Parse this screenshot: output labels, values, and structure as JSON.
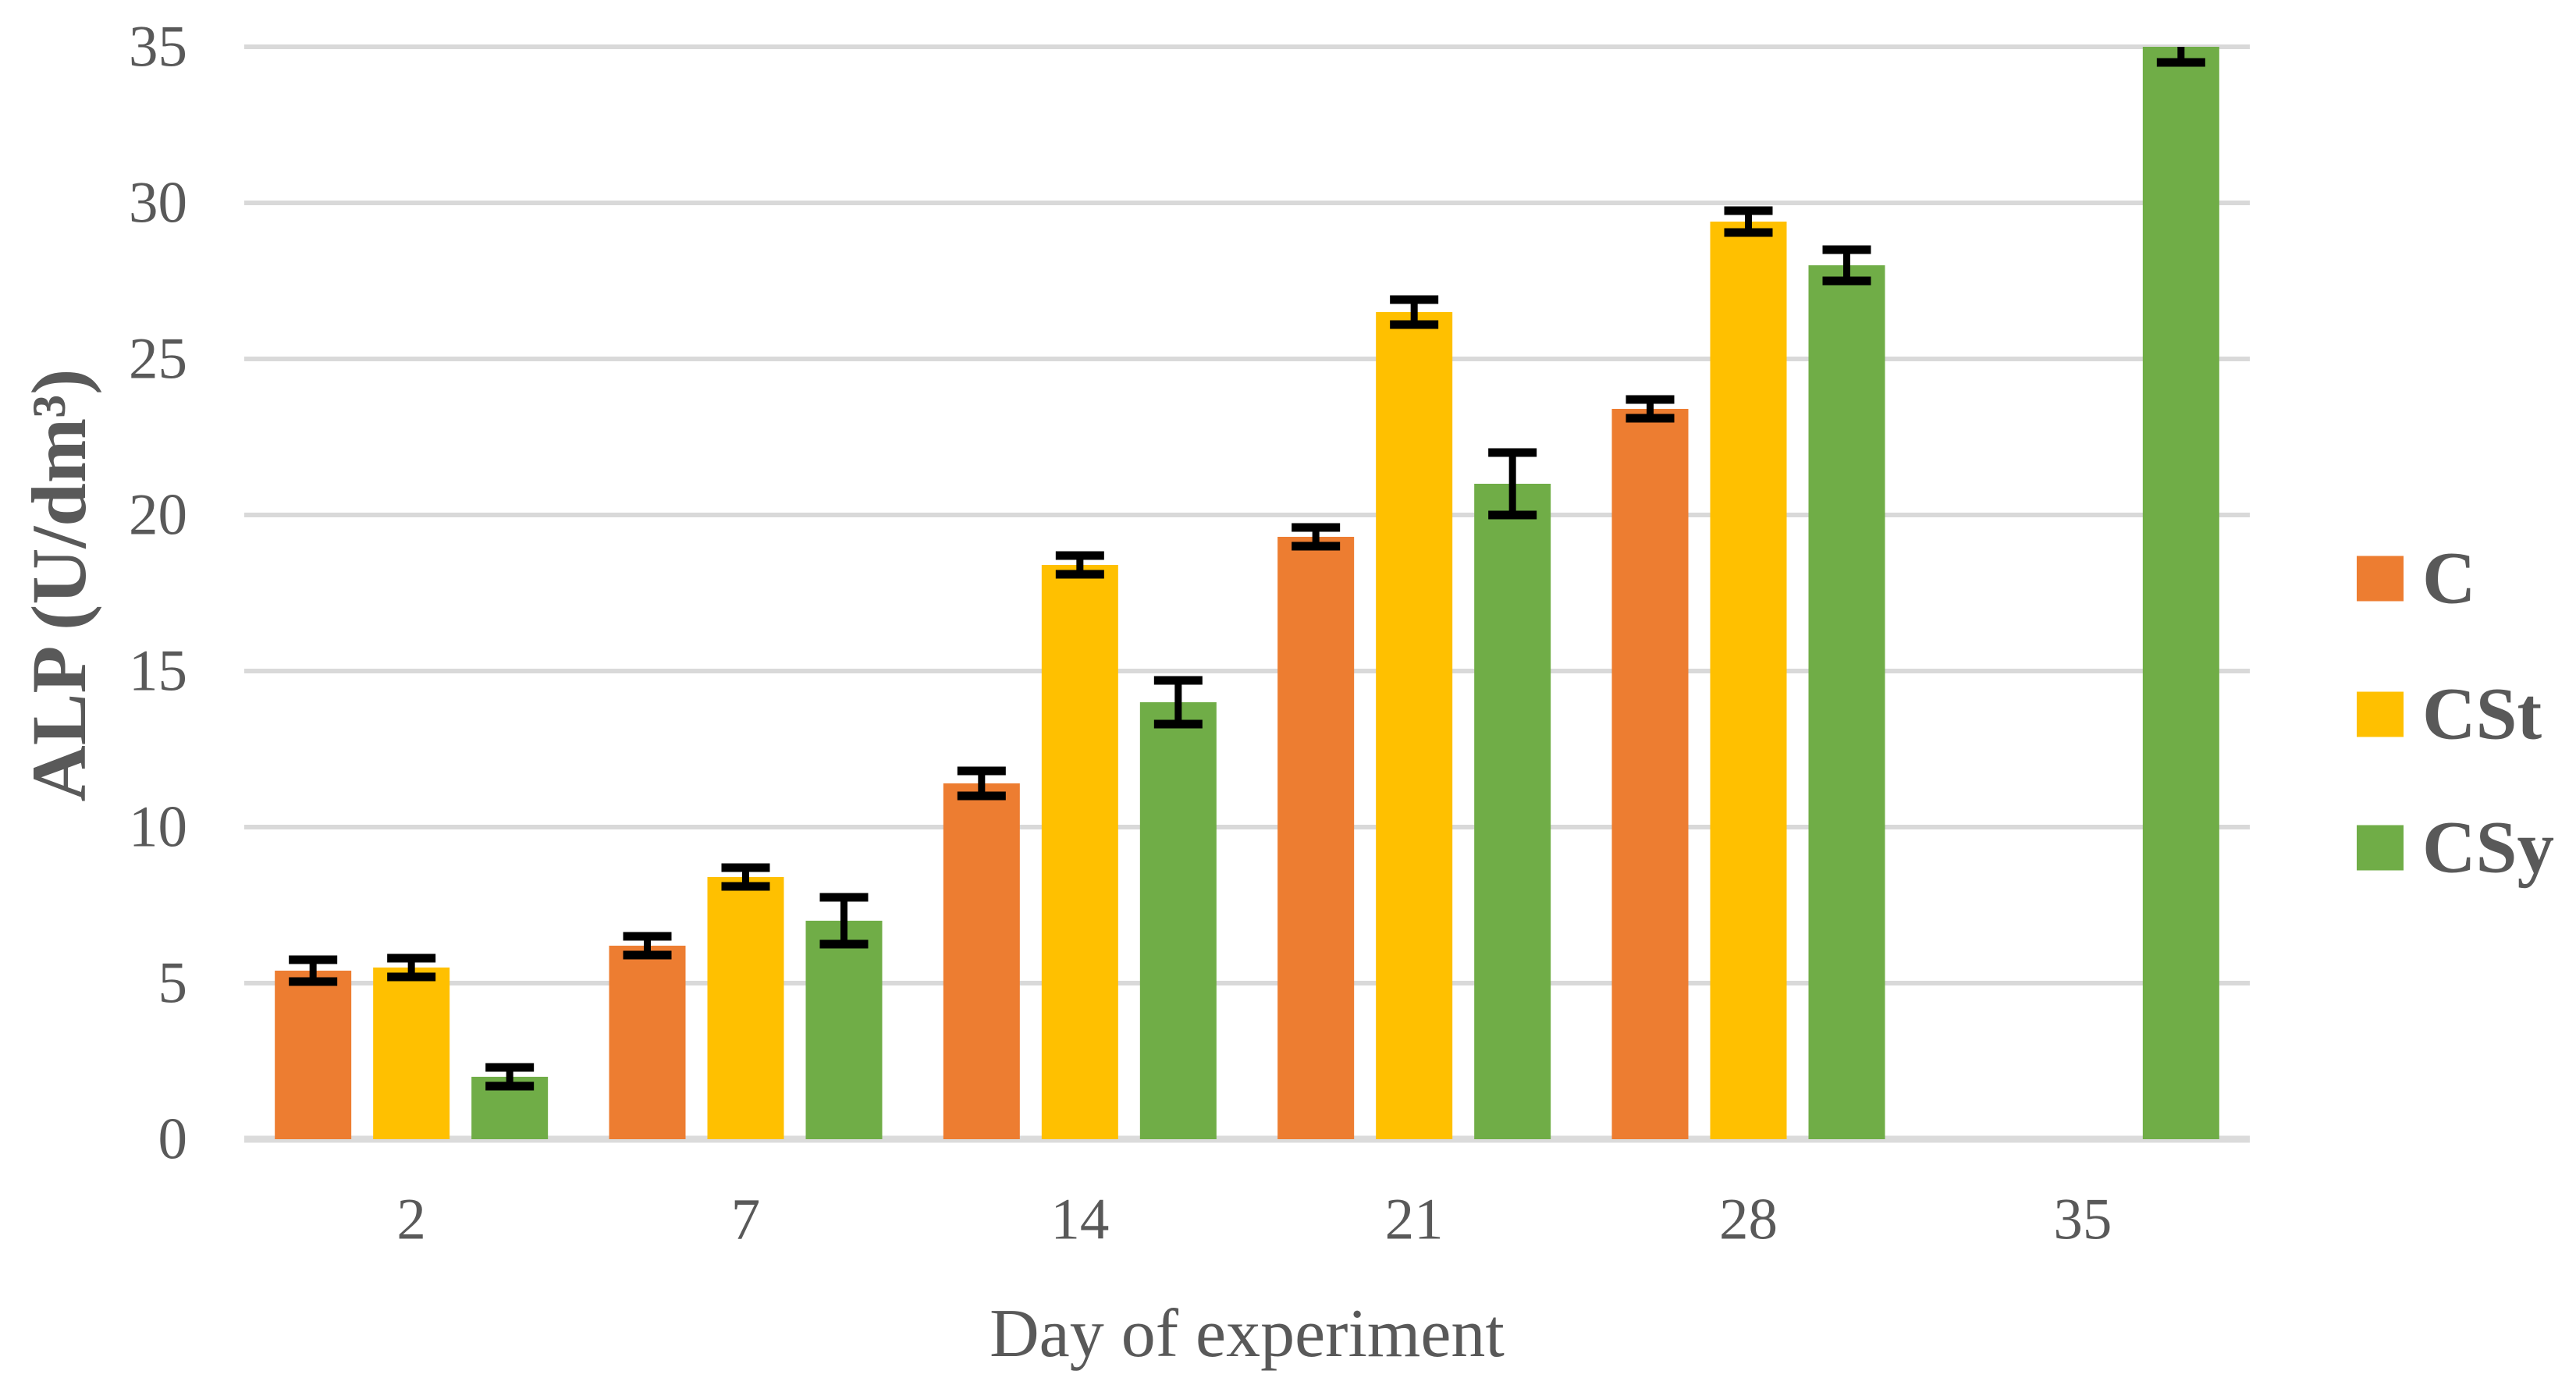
{
  "figure": {
    "background": "#FFFFFF",
    "text_color": "#595959",
    "grid_color": "#D9D9D9",
    "baseline_color": "#DBDBDB",
    "error_bar_color": "#000000"
  },
  "chart_data": {
    "type": "bar",
    "title": "",
    "xlabel": "Day of experiment",
    "ylabel": "ALP (U/dm³)",
    "categories": [
      "2",
      "7",
      "14",
      "21",
      "28",
      "35"
    ],
    "series": [
      {
        "name": "C",
        "color": "#ED7D31",
        "values": [
          5.4,
          6.2,
          11.4,
          19.3,
          23.4,
          null
        ],
        "errors": [
          0.35,
          0.3,
          0.4,
          0.3,
          0.3,
          null
        ]
      },
      {
        "name": "CSt",
        "color": "#FFC000",
        "values": [
          5.5,
          8.4,
          18.4,
          26.5,
          29.4,
          null
        ],
        "errors": [
          0.3,
          0.3,
          0.3,
          0.4,
          0.35,
          null
        ]
      },
      {
        "name": "CSy",
        "color": "#70AD47",
        "values": [
          2.0,
          7.0,
          14.0,
          21.0,
          28.0,
          35.0
        ],
        "errors": [
          0.3,
          0.75,
          0.7,
          1.0,
          0.5,
          0.5
        ]
      }
    ],
    "ylim": [
      0,
      35
    ],
    "ytick_step": 5,
    "yticks": [
      "0",
      "5",
      "10",
      "15",
      "20",
      "25",
      "30",
      "35"
    ],
    "grid": "horizontal",
    "legend_position": "right",
    "error_bars": true
  }
}
